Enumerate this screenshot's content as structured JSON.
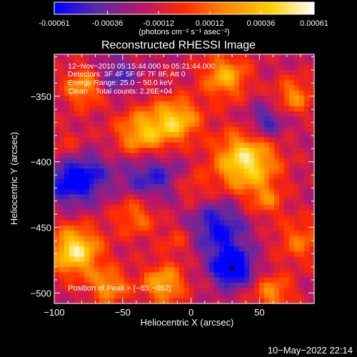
{
  "colorbar": {
    "ticks": [
      "-0.00061",
      "-0.00036",
      "-0.00012",
      "0.00012",
      "0.00036",
      "0.00061"
    ],
    "tick_values": [
      -0.00061,
      -0.00036,
      -0.00012,
      0.00012,
      0.00036,
      0.00061
    ],
    "units_label": "(photons cm⁻² s⁻¹ asec⁻²)",
    "colors": [
      "#0000ff",
      "#5a2aa6",
      "#b8166c",
      "#ff2a00",
      "#ff8c00",
      "#ffd000",
      "#ffffff"
    ]
  },
  "chart_data": {
    "type": "heatmap",
    "title": "Reconstructed RHESSI Image",
    "xlabel": "Heliocentric X (arcsec)",
    "ylabel": "Heliocentric Y (arcsec)",
    "xlim": [
      -100,
      90
    ],
    "ylim": [
      -508,
      -318
    ],
    "x_ticks": [
      -100,
      -50,
      0,
      50
    ],
    "x_tick_labels": [
      "−100",
      "−50",
      "0",
      "50"
    ],
    "y_ticks": [
      -350,
      -400,
      -450,
      -500
    ],
    "y_tick_labels": [
      "−350",
      "−400",
      "−450",
      "−500"
    ],
    "info_lines": [
      "12−Nov−2010 05:15:44.000 to 05:21:44.000",
      "Detectors: 3F 4F 5F 6F 7F 8F, Att 0",
      "Energy Range: 25.0 − 50.0 keV",
      "Clean    Total counts: 2.26E+04"
    ],
    "peak_text": "Position of Peak = [−83,−462]",
    "peak_position": [
      -83,
      -462
    ],
    "blobs": [
      {
        "x": 40,
        "y": -400,
        "s": 16,
        "amp": 1.0
      },
      {
        "x": -85,
        "y": -468,
        "s": 13,
        "amp": 1.0
      },
      {
        "x": -35,
        "y": -380,
        "s": 14,
        "amp": 0.8
      },
      {
        "x": -10,
        "y": -368,
        "s": 12,
        "amp": 0.75
      },
      {
        "x": 25,
        "y": -335,
        "s": 12,
        "amp": 0.7
      },
      {
        "x": -78,
        "y": -343,
        "s": 11,
        "amp": 0.6
      },
      {
        "x": -90,
        "y": -395,
        "s": 12,
        "amp": 0.5
      },
      {
        "x": -40,
        "y": -440,
        "s": 12,
        "amp": 0.5
      },
      {
        "x": -20,
        "y": -493,
        "s": 11,
        "amp": 0.7
      },
      {
        "x": -60,
        "y": -495,
        "s": 10,
        "amp": 0.6
      },
      {
        "x": 0,
        "y": -420,
        "s": 10,
        "amp": 0.3
      },
      {
        "x": 75,
        "y": -350,
        "s": 10,
        "amp": 0.55
      },
      {
        "x": 80,
        "y": -460,
        "s": 12,
        "amp": 0.45
      },
      {
        "x": 60,
        "y": -500,
        "s": 10,
        "amp": 0.55
      },
      {
        "x": 55,
        "y": -430,
        "s": 9,
        "amp": 0.4
      },
      {
        "x": -10,
        "y": -460,
        "s": 8,
        "amp": 0.3
      },
      {
        "x": -85,
        "y": -410,
        "s": 14,
        "amp": -1.0
      },
      {
        "x": 30,
        "y": -480,
        "s": 10,
        "amp": -1.0
      },
      {
        "x": -30,
        "y": -410,
        "s": 16,
        "amp": -0.55
      },
      {
        "x": 20,
        "y": -450,
        "s": 14,
        "amp": -0.6
      },
      {
        "x": 55,
        "y": -370,
        "s": 10,
        "amp": -0.5
      },
      {
        "x": -55,
        "y": -335,
        "s": 10,
        "amp": -0.45
      }
    ]
  },
  "footer": {
    "date": "10−May−2022 22:14"
  }
}
